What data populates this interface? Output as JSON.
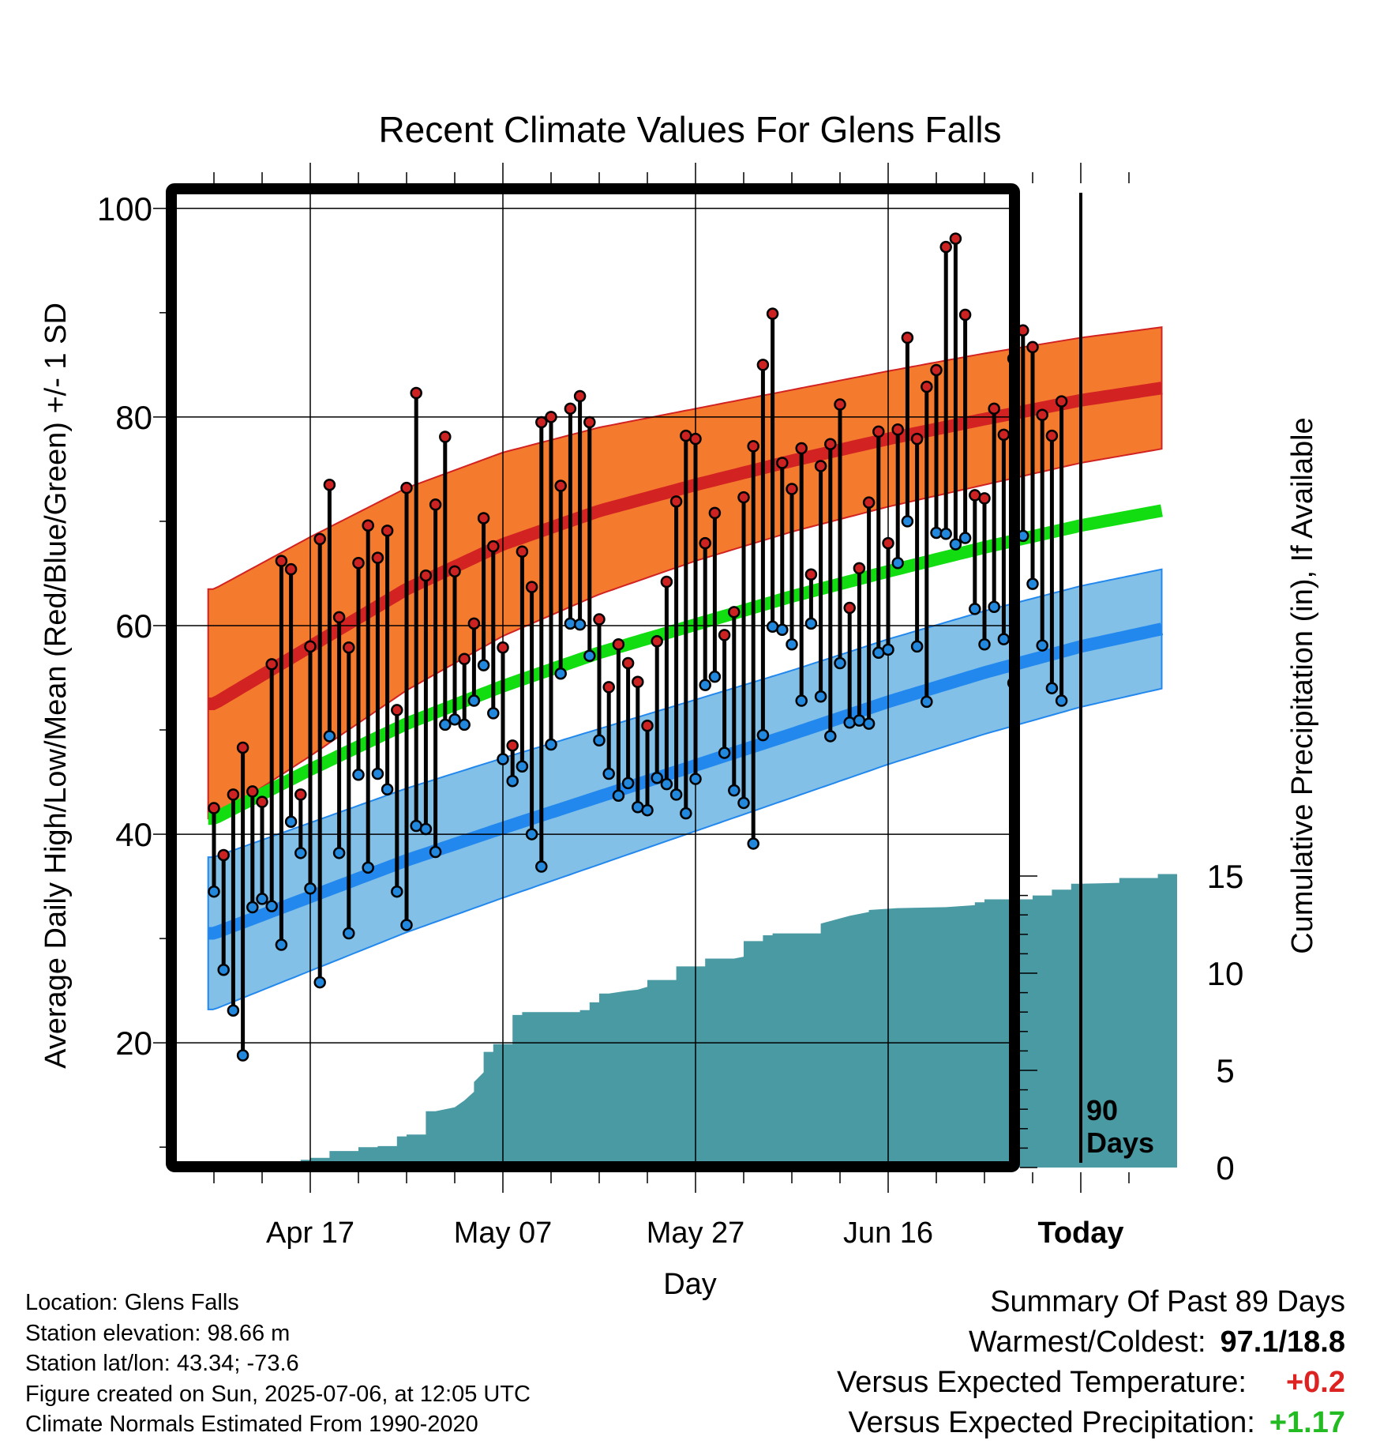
{
  "chart_data": {
    "type": "line",
    "title": "Recent Climate Values For Glens Falls",
    "xlabel": "Day",
    "ylabel": "Average Daily High/Low/Mean (Red/Blue/Green) +/- 1 SD",
    "y2label": "Cumulative Precipitation (in), If Available",
    "ylim": [
      8.5,
      101.5
    ],
    "y_ticks": [
      20,
      40,
      60,
      80,
      100
    ],
    "y2lim": [
      0,
      30
    ],
    "y2_ticks": [
      0,
      5,
      10,
      15
    ],
    "xlim": [
      -10.5,
      90
    ],
    "x_ticks": [
      {
        "day": 0,
        "label": "Apr 17"
      },
      {
        "day": 20,
        "label": "May 07"
      },
      {
        "day": 40,
        "label": "May 27"
      },
      {
        "day": 60,
        "label": "Jun 16"
      },
      {
        "day": 80,
        "label": "Today"
      }
    ],
    "today_marker": {
      "day": 80,
      "label_line1": "90",
      "label_line2": "Days"
    },
    "colors": {
      "high_normal": "#d22222",
      "high_band": "#f47a2e",
      "mean_normal": "#11dd11",
      "low_normal": "#2288ee",
      "low_band": "#82c0e8",
      "observed_high": "#cc2222",
      "observed_low": "#2288dd",
      "precip": "#4a9aa4",
      "positive_temp": "#dd2222",
      "positive_precip": "#22bb22"
    },
    "normals": {
      "day": [
        -10,
        0,
        10,
        20,
        30,
        40,
        50,
        60,
        70,
        80,
        90
      ],
      "high": [
        52.5,
        58.0,
        63.5,
        67.8,
        71.0,
        73.5,
        75.8,
        77.9,
        79.8,
        81.6,
        83.0
      ],
      "high_sd": [
        11.0,
        10.5,
        9.7,
        8.8,
        8.0,
        7.3,
        6.8,
        6.5,
        6.3,
        6.0,
        5.8
      ],
      "mean": [
        41.5,
        46.2,
        50.6,
        54.2,
        57.4,
        60.1,
        62.8,
        65.2,
        67.5,
        69.6,
        71.3
      ],
      "low": [
        30.5,
        34.0,
        37.5,
        40.6,
        43.6,
        46.6,
        49.6,
        52.7,
        55.5,
        58.0,
        60.0
      ],
      "low_sd": [
        7.3,
        7.1,
        6.9,
        6.7,
        6.5,
        6.3,
        6.1,
        6.0,
        5.9,
        5.8,
        5.7
      ]
    },
    "observed": {
      "day": [
        -10,
        -9,
        -8,
        -7,
        -6,
        -5,
        -4,
        -3,
        -2,
        -1,
        0,
        1,
        2,
        3,
        4,
        5,
        6,
        7,
        8,
        9,
        10,
        11,
        12,
        13,
        14,
        15,
        16,
        17,
        18,
        19,
        20,
        21,
        22,
        23,
        24,
        25,
        26,
        27,
        28,
        29,
        30,
        31,
        32,
        33,
        34,
        35,
        36,
        37,
        38,
        39,
        40,
        41,
        42,
        43,
        44,
        45,
        46,
        47,
        48,
        49,
        50,
        51,
        52,
        53,
        54,
        55,
        56,
        57,
        58,
        59,
        60,
        61,
        62,
        63,
        64,
        65,
        66,
        67,
        68,
        69,
        70,
        71,
        72,
        73,
        74,
        75,
        76,
        77,
        78,
        79
      ],
      "high": [
        42.5,
        38.0,
        43.8,
        48.3,
        44.1,
        43.1,
        56.3,
        66.2,
        65.4,
        43.8,
        58.0,
        68.3,
        73.5,
        60.8,
        57.9,
        66.0,
        69.6,
        66.5,
        69.1,
        51.9,
        73.2,
        82.3,
        64.8,
        71.6,
        78.1,
        65.2,
        56.8,
        60.2,
        70.3,
        67.6,
        57.9,
        48.5,
        67.1,
        63.7,
        79.5,
        80.0,
        73.4,
        80.8,
        82.0,
        79.5,
        60.6,
        54.1,
        58.2,
        56.4,
        54.6,
        50.4,
        58.5,
        64.2,
        71.9,
        78.2,
        77.9,
        67.9,
        70.8,
        59.1,
        61.3,
        72.3,
        77.2,
        85.0,
        89.9,
        75.6,
        73.1,
        77.0,
        64.9,
        75.3,
        77.4,
        81.2,
        61.7,
        65.5,
        71.8,
        78.6,
        67.9,
        78.8,
        87.6,
        77.9,
        82.9,
        84.5,
        96.3,
        97.1,
        89.8,
        72.5,
        72.2,
        80.8,
        78.3,
        85.6,
        88.3,
        86.7,
        80.2,
        78.2,
        81.5,
        null
      ],
      "low": [
        34.5,
        27.0,
        23.1,
        18.8,
        33.0,
        33.8,
        33.1,
        29.4,
        41.2,
        38.2,
        34.8,
        25.8,
        49.4,
        38.2,
        30.5,
        45.7,
        36.8,
        45.8,
        44.3,
        34.5,
        31.3,
        40.8,
        40.5,
        38.3,
        50.5,
        51.0,
        50.5,
        52.8,
        56.2,
        51.6,
        47.2,
        45.1,
        46.5,
        40.0,
        36.9,
        48.6,
        55.4,
        60.2,
        60.1,
        57.1,
        49.0,
        45.8,
        43.7,
        44.9,
        42.6,
        42.3,
        45.4,
        44.8,
        43.8,
        42.0,
        45.3,
        54.3,
        55.1,
        47.8,
        44.2,
        43.0,
        39.1,
        49.5,
        59.9,
        59.6,
        58.2,
        52.8,
        60.2,
        53.2,
        49.4,
        56.4,
        50.7,
        50.9,
        50.6,
        57.4,
        57.7,
        66.0,
        70.0,
        58.0,
        52.7,
        68.9,
        68.8,
        67.8,
        68.4,
        61.6,
        58.2,
        61.8,
        58.7,
        54.5,
        68.6,
        64.0,
        58.1,
        54.0,
        52.8,
        null
      ]
    },
    "precip": {
      "day": [
        -10,
        -6,
        -6,
        -5,
        -5,
        -1,
        -1,
        0,
        0,
        2,
        2,
        5,
        5,
        7,
        7,
        9,
        9,
        10,
        10,
        12,
        12,
        13,
        15,
        16,
        17,
        17,
        18,
        18,
        19,
        19,
        21,
        21,
        22,
        22,
        23,
        28,
        28,
        29,
        29,
        30,
        30,
        31,
        33,
        34,
        35,
        35,
        38,
        38,
        41,
        41,
        44,
        45,
        45,
        47,
        47,
        48,
        48,
        53,
        53,
        56,
        58,
        58,
        61,
        66,
        69,
        69,
        70,
        70,
        75,
        75,
        77,
        77,
        79,
        79,
        80,
        84,
        84,
        88,
        88,
        90
      ],
      "value": [
        0,
        0,
        0.25,
        0.25,
        0.3,
        0.3,
        0.4,
        0.4,
        0.5,
        0.5,
        0.85,
        0.85,
        1.05,
        1.05,
        1.1,
        1.1,
        1.6,
        1.6,
        1.7,
        1.7,
        2.9,
        2.9,
        3.1,
        3.45,
        3.9,
        4.4,
        4.9,
        5.95,
        5.95,
        6.35,
        6.35,
        7.85,
        7.85,
        8.0,
        8.0,
        8.0,
        8.1,
        8.1,
        8.5,
        8.5,
        8.95,
        8.95,
        9.1,
        9.15,
        9.3,
        9.65,
        9.65,
        10.35,
        10.35,
        10.75,
        10.75,
        10.85,
        11.65,
        11.65,
        11.95,
        11.95,
        12.05,
        12.05,
        12.55,
        12.95,
        13.15,
        13.25,
        13.35,
        13.4,
        13.5,
        13.65,
        13.65,
        13.8,
        13.8,
        14.0,
        14.0,
        14.3,
        14.3,
        14.6,
        14.6,
        14.65,
        14.9,
        14.9,
        15.1,
        15.1
      ]
    }
  },
  "info": {
    "location": "Location: Glens Falls",
    "elevation": "Station elevation: 98.66 m",
    "latlon": "Station lat/lon: 43.34; -73.6",
    "created": "Figure created on Sun, 2025-07-06, at 12:05 UTC",
    "normals": "Climate Normals Estimated From 1990-2020"
  },
  "summary": {
    "heading": "Summary Of Past 89 Days",
    "warmest_coldest_label": "Warmest/Coldest:",
    "warmest_coldest_value": "97.1/18.8",
    "temp_label": "Versus Expected Temperature:",
    "temp_value": "+0.2",
    "precip_label": "Versus Expected Precipitation:",
    "precip_value": "+1.17"
  }
}
